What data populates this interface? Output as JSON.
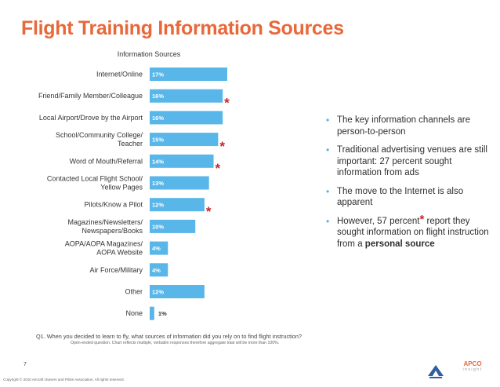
{
  "page": {
    "title": "Flight Training Information Sources",
    "page_number": "7",
    "copyright": "Copyright © 2010 Aircraft Owners and Pilots Association. All rights reserved."
  },
  "chart_data": {
    "type": "bar",
    "orientation": "horizontal",
    "title": "Information Sources",
    "categories": [
      "Internet/Online",
      "Friend/Family Member/Colleague",
      "Local Airport/Drove by the Airport",
      "School/Community College/\nTeacher",
      "Word of Mouth/Referral",
      "Contacted Local Flight School/\nYellow Pages",
      "Pilots/Know a Pilot",
      "Magazines/Newsletters/\nNewspapers/Books",
      "AOPA/AOPA Magazines/\nAOPA Website",
      "Air Force/Military",
      "Other",
      "None"
    ],
    "values": [
      17,
      16,
      16,
      15,
      14,
      13,
      12,
      10,
      4,
      4,
      12,
      1
    ],
    "value_labels": [
      "17%",
      "16%",
      "16%",
      "15%",
      "14%",
      "13%",
      "12%",
      "10%",
      "4%",
      "4%",
      "12%",
      "1%"
    ],
    "starred": [
      false,
      true,
      false,
      true,
      true,
      false,
      true,
      false,
      false,
      false,
      false,
      false
    ],
    "star_symbol": "*",
    "bar_color": "#58b6e8",
    "star_color": "#c0282e",
    "xlim": [
      0,
      17
    ]
  },
  "bullets": [
    {
      "text": "The key information channels are person-to-person"
    },
    {
      "text": "Traditional advertising venues are still important: 27 percent sought information from ads"
    },
    {
      "text": "The move to the Internet is also apparent"
    },
    {
      "before": "However, 57 percent",
      "star": "*",
      "after": " report they sought information on flight instruction from a ",
      "bold": "personal source"
    }
  ],
  "footer": {
    "question": "Q1. When you decided to learn to fly, what sources of information did you rely on to find flight instruction?",
    "note": "Open-ended question. Chart reflects multiple, verbatim responses therefore aggregate total will be more than 100%.",
    "apco_top": "APCO",
    "apco_bottom": "insight"
  },
  "colors": {
    "title": "#e8683a",
    "accent": "#4db3e6"
  }
}
